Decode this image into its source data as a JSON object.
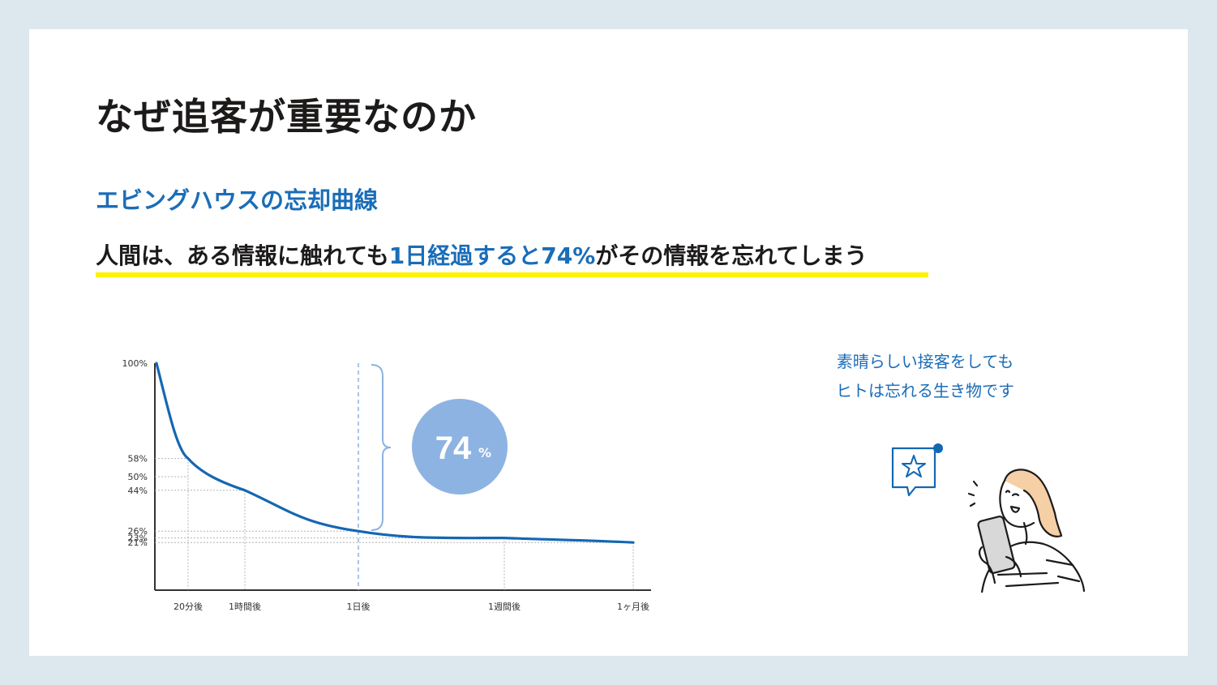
{
  "title": "なぜ追客が重要なのか",
  "subtitle": "エビングハウスの忘却曲線",
  "lead": {
    "part1": "人間は、ある情報に触れても",
    "highlight": "1日経過すると74%",
    "part2": "がその情報を忘れてしまう"
  },
  "caption": {
    "line1": "素晴らしい接客をしても",
    "line2": "ヒトは忘れる生き物です"
  },
  "chart_data": {
    "type": "line",
    "x": [
      "0",
      "20分後",
      "1時間後",
      "1日後",
      "1週間後",
      "1ヶ月後"
    ],
    "x_labels": [
      "20分後",
      "1時間後",
      "1日後",
      "1週間後",
      "1ヶ月後"
    ],
    "series": [
      {
        "values": [
          100,
          58,
          44,
          26,
          23,
          21
        ]
      }
    ],
    "y_labels": [
      "100%",
      "58%",
      "50%",
      "44%",
      "26%",
      "23%",
      "21%"
    ],
    "ylim": [
      0,
      100
    ],
    "annotation": {
      "value": "74",
      "unit": "%"
    },
    "colors": {
      "line": "#1467b3",
      "bubble": "#8db3e2",
      "brace": "#8db3e2"
    }
  }
}
